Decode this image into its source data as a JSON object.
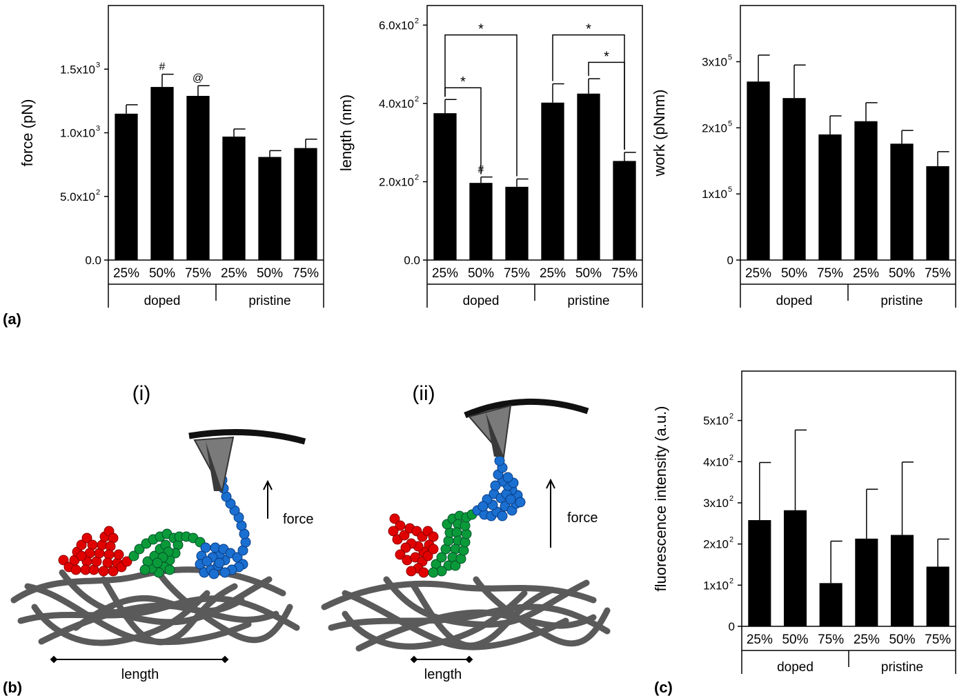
{
  "panel_labels": [
    "(a)",
    "(b)",
    "(c)"
  ],
  "chart_data": [
    {
      "type": "bar",
      "ylabel": "force (pN)",
      "categories": [
        "25%",
        "50%",
        "75%",
        "25%",
        "50%",
        "75%"
      ],
      "groups": [
        "doped",
        "pristine"
      ],
      "values": [
        1150,
        1360,
        1290,
        970,
        810,
        880
      ],
      "errors": [
        70,
        100,
        80,
        60,
        50,
        70
      ],
      "annotations": [
        {
          "index": 1,
          "text": "#"
        },
        {
          "index": 2,
          "text": "@"
        }
      ],
      "ylim": [
        0,
        2000
      ],
      "yticks": [
        0,
        500,
        1000,
        1500
      ],
      "ytick_labels": [
        "0.0",
        "5.0x10",
        "1.0x10",
        "1.5x10"
      ],
      "ytick_exponents": [
        "",
        "2",
        "3",
        "3"
      ],
      "significance": []
    },
    {
      "type": "bar",
      "ylabel": "length (nm)",
      "categories": [
        "25%",
        "50%",
        "75%",
        "25%",
        "50%",
        "75%"
      ],
      "groups": [
        "doped",
        "pristine"
      ],
      "values": [
        375,
        197,
        187,
        402,
        425,
        253
      ],
      "errors": [
        35,
        15,
        20,
        48,
        38,
        22
      ],
      "annotations": [
        {
          "index": 1,
          "text": "#"
        }
      ],
      "ylim": [
        0,
        650
      ],
      "yticks": [
        0,
        200,
        400,
        600
      ],
      "ytick_labels": [
        "0.0",
        "2.0x10",
        "4.0x10",
        "6.0x10"
      ],
      "ytick_exponents": [
        "",
        "2",
        "2",
        "2"
      ],
      "significance": [
        {
          "from": 0,
          "to": 1,
          "y": 440,
          "text": "*"
        },
        {
          "from": 0,
          "to": 2,
          "y": 575,
          "text": "*"
        },
        {
          "from": 3,
          "to": 5,
          "y": 575,
          "text": "*"
        },
        {
          "from": 4,
          "to": 5,
          "y": 505,
          "text": "*"
        }
      ]
    },
    {
      "type": "bar",
      "ylabel": "work (pNnm)",
      "categories": [
        "25%",
        "50%",
        "75%",
        "25%",
        "50%",
        "75%"
      ],
      "groups": [
        "doped",
        "pristine"
      ],
      "values": [
        270000,
        245000,
        190000,
        210000,
        176000,
        142000
      ],
      "errors": [
        40000,
        50000,
        28000,
        28000,
        20000,
        22000
      ],
      "annotations": [],
      "ylim": [
        0,
        385000
      ],
      "yticks": [
        0,
        100000,
        200000,
        300000
      ],
      "ytick_labels": [
        "0",
        "1x10",
        "2x10",
        "3x10"
      ],
      "ytick_exponents": [
        "",
        "5",
        "5",
        "5"
      ],
      "significance": []
    },
    {
      "type": "bar",
      "ylabel": "fluorescence intensity (a.u.)",
      "categories": [
        "25%",
        "50%",
        "75%",
        "25%",
        "50%",
        "75%"
      ],
      "groups": [
        "doped",
        "pristine"
      ],
      "values": [
        258,
        282,
        105,
        213,
        222,
        145
      ],
      "errors": [
        140,
        195,
        102,
        120,
        177,
        67
      ],
      "annotations": [],
      "ylim": [
        0,
        620
      ],
      "yticks": [
        0,
        100,
        200,
        300,
        400,
        500
      ],
      "ytick_labels": [
        "0",
        "1x10",
        "2x10",
        "3x10",
        "4x10",
        "5x10"
      ],
      "ytick_exponents": [
        "",
        "2",
        "2",
        "2",
        "2",
        "2"
      ],
      "significance": []
    }
  ],
  "schematic": {
    "labels": [
      "(i)",
      "(ii)"
    ],
    "force_label": "force",
    "length_label": "length",
    "colors": {
      "fiber": "#5a5a5a",
      "domain1": "#e00000",
      "domain2": "#0a9a3a",
      "domain3": "#1a6fd0",
      "tip": "#7a7a7a",
      "cantilever": "#111111"
    }
  }
}
